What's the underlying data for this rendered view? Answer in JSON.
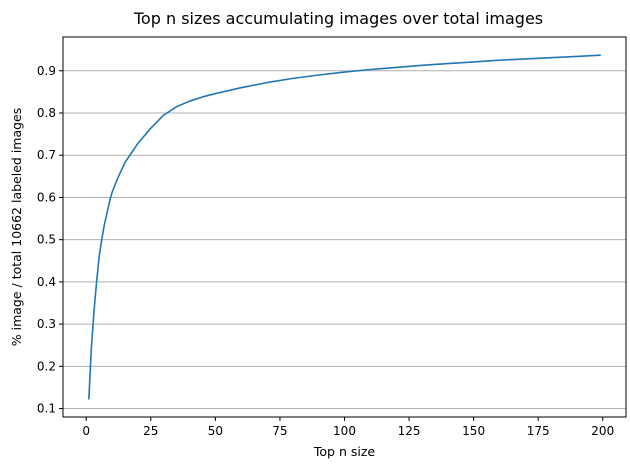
{
  "chart_data": {
    "type": "line",
    "title": "Top n sizes accumulating images over total images",
    "xlabel": "Top n size",
    "ylabel": "% image / total 10662 labeled images",
    "xlim": [
      -9,
      209
    ],
    "ylim": [
      0.08,
      0.98
    ],
    "xticks": [
      0,
      25,
      50,
      75,
      100,
      125,
      150,
      175,
      200
    ],
    "yticks": [
      0.1,
      0.2,
      0.3,
      0.4,
      0.5,
      0.6,
      0.7,
      0.8,
      0.9
    ],
    "grid": "y",
    "line_color": "#1f77b4",
    "series": [
      {
        "x": [
          1,
          2,
          3,
          4,
          5,
          6,
          7,
          8,
          9,
          10,
          12,
          15,
          20,
          25,
          30,
          35,
          40,
          45,
          50,
          60,
          70,
          80,
          90,
          100,
          110,
          120,
          130,
          140,
          150,
          160,
          170,
          180,
          190,
          199
        ],
        "values": [
          0.123,
          0.245,
          0.33,
          0.4,
          0.46,
          0.5,
          0.535,
          0.562,
          0.59,
          0.612,
          0.643,
          0.683,
          0.728,
          0.764,
          0.795,
          0.815,
          0.828,
          0.838,
          0.846,
          0.86,
          0.872,
          0.882,
          0.89,
          0.897,
          0.903,
          0.908,
          0.913,
          0.917,
          0.921,
          0.925,
          0.928,
          0.931,
          0.934,
          0.937
        ]
      }
    ]
  }
}
